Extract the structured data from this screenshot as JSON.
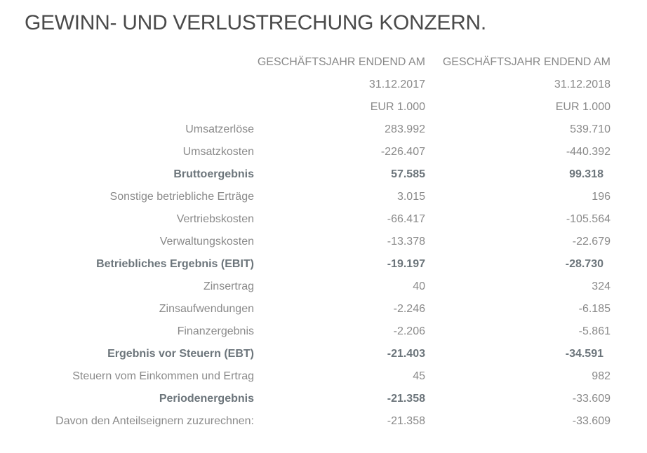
{
  "title": "GEWINN- UND VERLUSTRECHUNG KONZERN.",
  "header": [
    {
      "c1": "GESCHÄFTSJAHR ENDEND AM",
      "c2": "GESCHÄFTSJAHR ENDEND AM"
    },
    {
      "c1": "31.12.2017",
      "c2": "31.12.2018"
    },
    {
      "c1": "EUR 1.000",
      "c2": "EUR 1.000"
    }
  ],
  "rows": [
    {
      "label": "Umsatzerlöse",
      "c1": "283.992",
      "c2": "539.710",
      "bold": false
    },
    {
      "label": "Umsatzkosten",
      "c1": "-226.407",
      "c2": "-440.392",
      "bold": false
    },
    {
      "label": "Bruttoergebnis",
      "c1": "57.585",
      "c2": "99.318",
      "bold": true
    },
    {
      "label": "Sonstige betriebliche Erträge",
      "c1": "3.015",
      "c2": "196",
      "bold": false
    },
    {
      "label": "Vertriebskosten",
      "c1": "-66.417",
      "c2": "-105.564",
      "bold": false
    },
    {
      "label": "Verwaltungskosten",
      "c1": "-13.378",
      "c2": "-22.679",
      "bold": false
    },
    {
      "label": "Betriebliches Ergebnis (EBIT)",
      "c1": "-19.197",
      "c2": "-28.730",
      "bold": true
    },
    {
      "label": "Zinsertrag",
      "c1": "40",
      "c2": "324",
      "bold": false
    },
    {
      "label": "Zinsaufwendungen",
      "c1": "-2.246",
      "c2": "-6.185",
      "bold": false
    },
    {
      "label": "Finanzergebnis",
      "c1": "-2.206",
      "c2": "-5.861",
      "bold": false
    },
    {
      "label": "Ergebnis vor Steuern (EBT)",
      "c1": "-21.403",
      "c2": "-34.591",
      "bold": true
    },
    {
      "label": "Steuern vom Einkommen und Ertrag",
      "c1": "45",
      "c2": "982",
      "bold": false
    },
    {
      "label": "Periodenergebnis",
      "c1": "-21.358",
      "c2": "-33.609",
      "bold": true,
      "c2_bold": false
    },
    {
      "label": "Davon den Anteilseignern zuzurechnen:",
      "c1": "-21.358",
      "c2": "-33.609",
      "bold": false
    }
  ]
}
